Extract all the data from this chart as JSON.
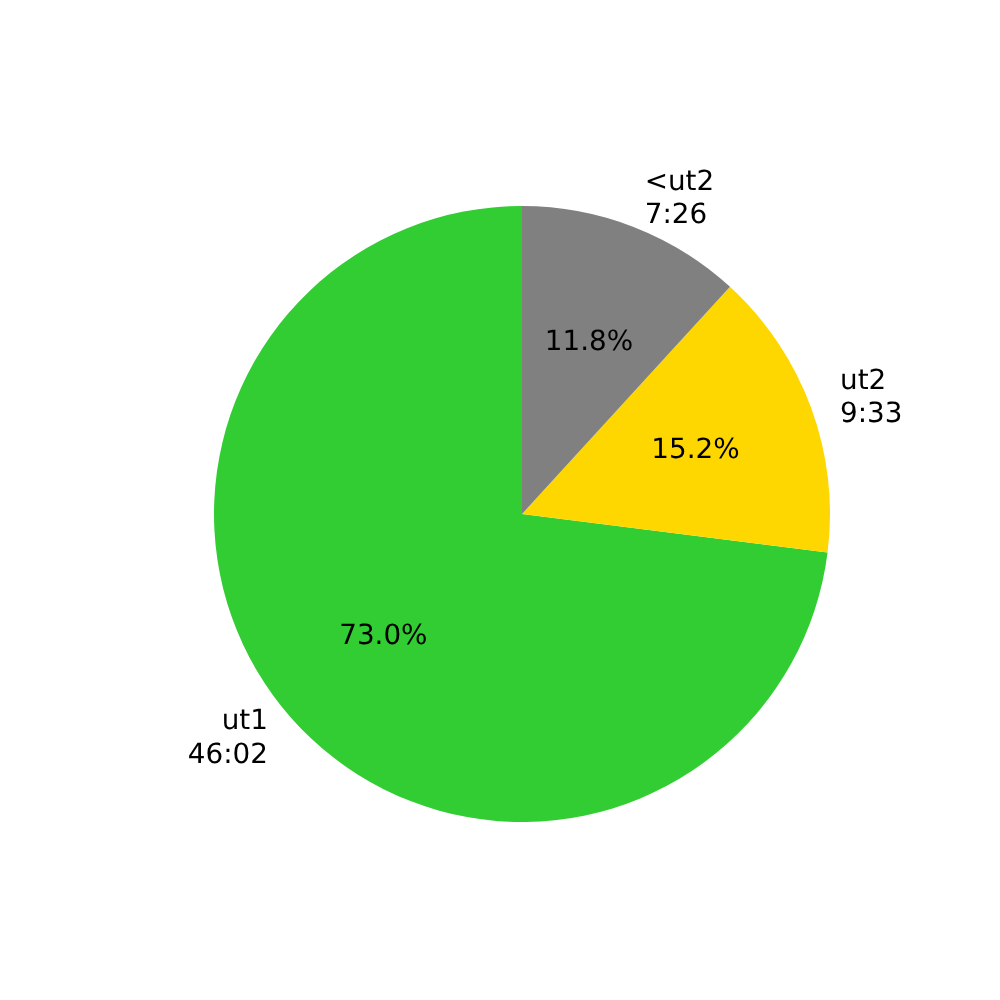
{
  "chart_data": {
    "type": "pie",
    "categories": [
      "ut1\n46:02",
      "ut2\n9:33",
      "<ut2\n7:26"
    ],
    "values": [
      73.0,
      15.2,
      11.8
    ],
    "colors": [
      "#32cd32",
      "#ffd700",
      "#808080"
    ],
    "value_labels": [
      "73.0%",
      "15.2%",
      "11.8%"
    ]
  }
}
